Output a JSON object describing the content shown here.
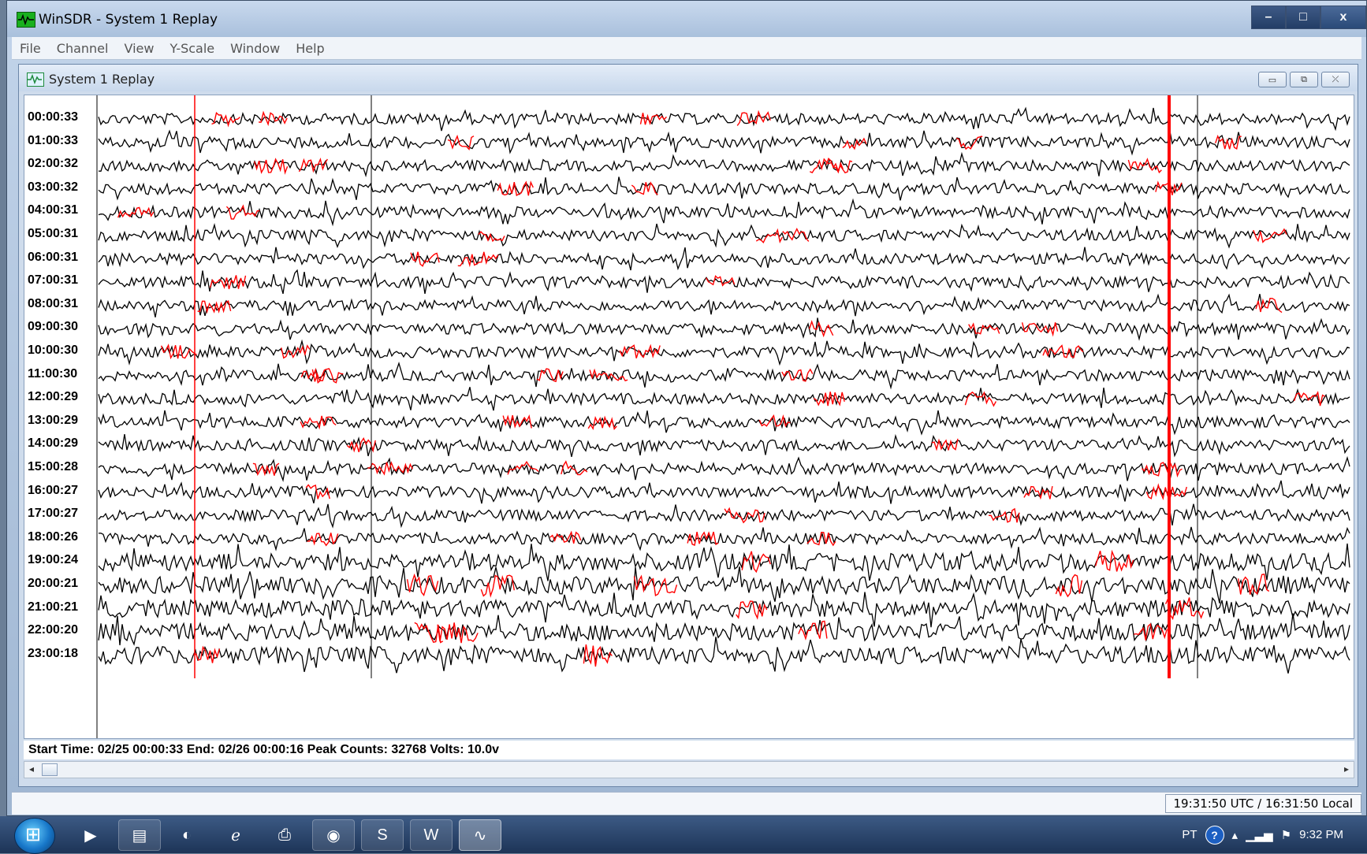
{
  "window": {
    "title": "WinSDR - System 1 Replay",
    "controls": {
      "minimize": "–",
      "maximize": "□",
      "close": "x"
    }
  },
  "menu": [
    "File",
    "Channel",
    "View",
    "Y-Scale",
    "Window",
    "Help"
  ],
  "child_window": {
    "title": "System 1 Replay",
    "controls": {
      "minimize": "▭",
      "restore": "⧉",
      "close": "⤫"
    }
  },
  "trace_labels": [
    "00:00:33",
    "01:00:33",
    "02:00:32",
    "03:00:32",
    "04:00:31",
    "05:00:31",
    "06:00:31",
    "07:00:31",
    "08:00:31",
    "09:00:30",
    "10:00:30",
    "11:00:30",
    "12:00:29",
    "13:00:29",
    "14:00:29",
    "15:00:28",
    "16:00:27",
    "17:00:27",
    "18:00:26",
    "19:00:24",
    "20:00:21",
    "21:00:21",
    "22:00:20",
    "23:00:18"
  ],
  "info_line": "Start Time: 02/25 00:00:33  End: 02/26 00:00:16  Peak Counts: 32768  Volts: 10.0v",
  "status_time": "19:31:50 UTC / 16:31:50 Local",
  "scrollbar": {
    "left_arrow": "◂",
    "right_arrow": "▸"
  },
  "taskbar": {
    "language": "PT",
    "help": "?",
    "clock": "9:32 PM",
    "apps": [
      "media-player",
      "file-explorer",
      "ie-alt",
      "internet-explorer",
      "printer",
      "chrome",
      "skype",
      "word",
      "winsdr"
    ]
  },
  "colors": {
    "trace": "#000000",
    "event": "#ff0000",
    "plot_bg": "#ffffff"
  }
}
